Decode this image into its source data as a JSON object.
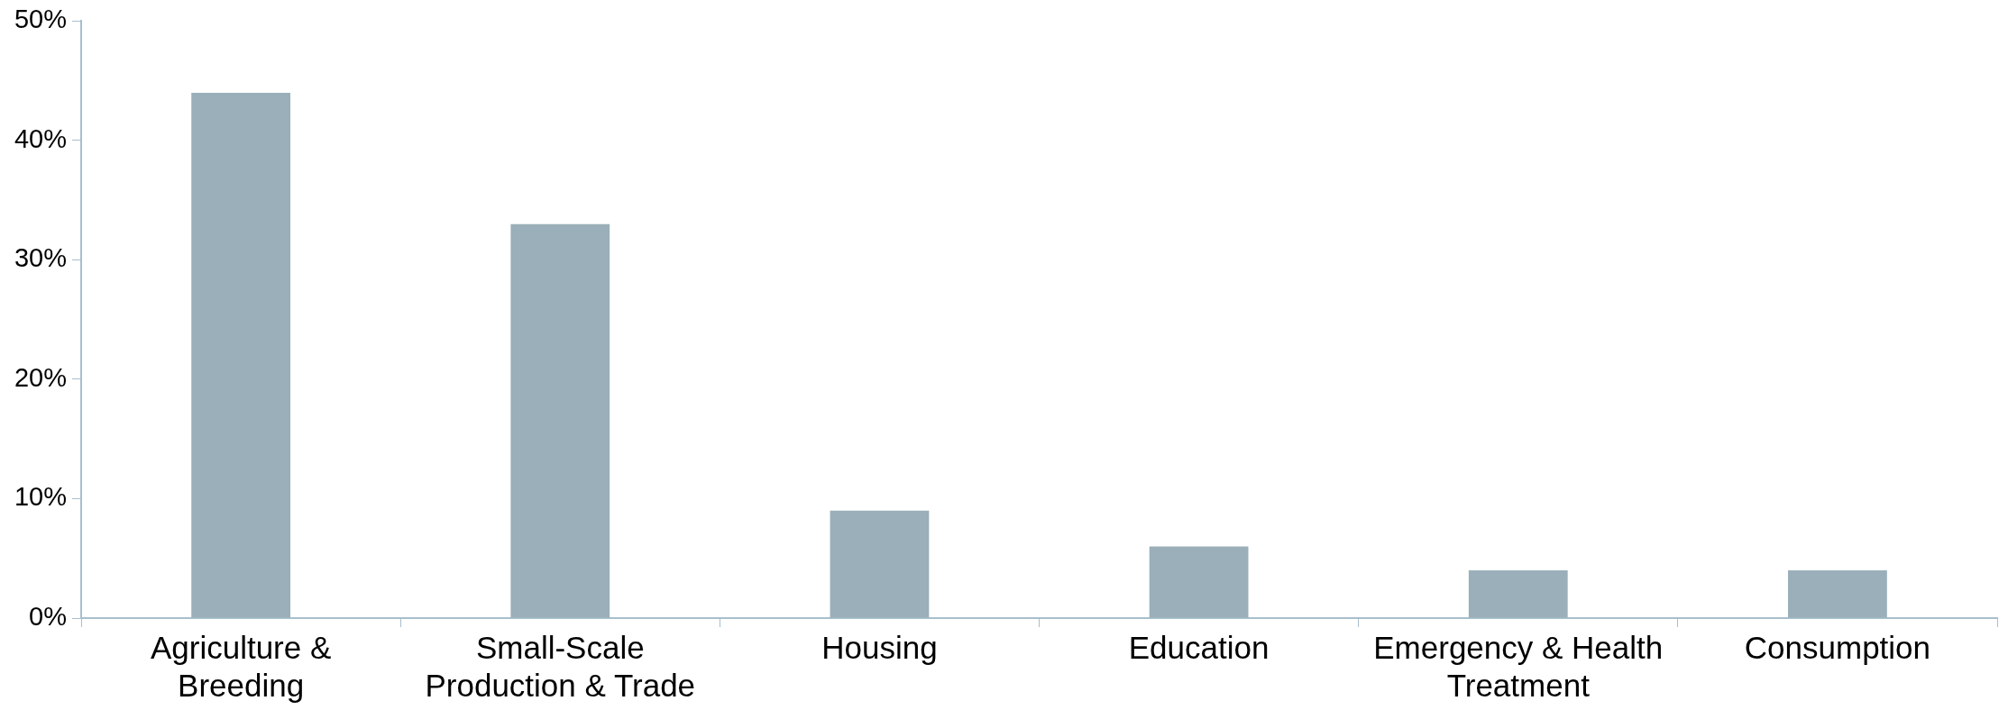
{
  "chart_data": {
    "type": "bar",
    "categories": [
      "Agriculture & Breeding",
      "Small-Scale Production & Trade",
      "Housing",
      "Education",
      "Emergency & Health Treatment",
      "Consumption"
    ],
    "values": [
      44,
      33,
      9,
      6,
      4,
      4
    ],
    "color": "#9aafb9",
    "ylim": [
      0,
      50
    ],
    "yticks": [
      {
        "value": 0,
        "label": "0%"
      },
      {
        "value": 10,
        "label": "10%"
      },
      {
        "value": 20,
        "label": "20%"
      },
      {
        "value": 30,
        "label": "30%"
      },
      {
        "value": 40,
        "label": "40%"
      },
      {
        "value": 50,
        "label": "50%"
      }
    ],
    "grid": false,
    "legend": false
  }
}
